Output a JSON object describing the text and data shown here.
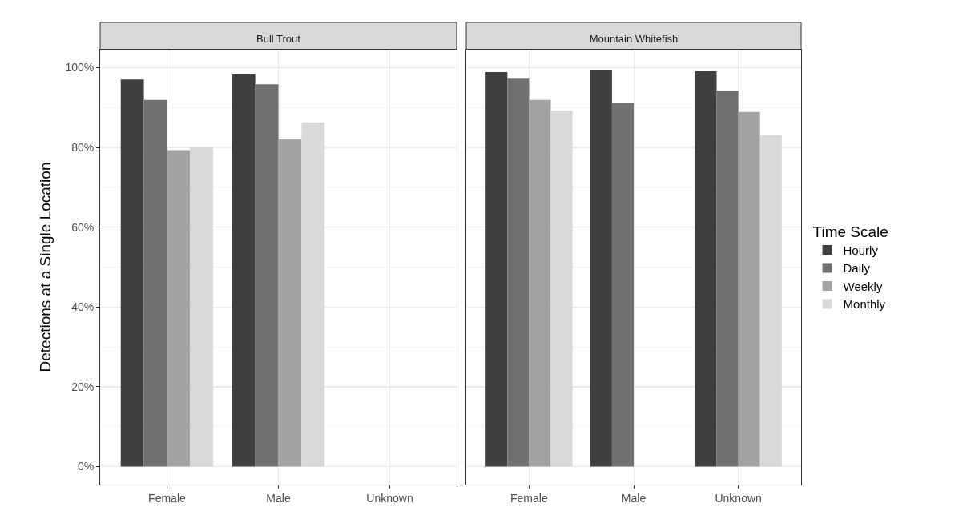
{
  "chart_data": [
    {
      "type": "bar",
      "title": "Bull Trout",
      "ylabel": "Detections at a Single Location",
      "categories": [
        "Female",
        "Male",
        "Unknown"
      ],
      "series": [
        {
          "color": "#3f3f3f",
          "values": [
            97.0,
            98.3,
            null
          ]
        },
        {
          "color": "#717171",
          "values": [
            91.9,
            95.8,
            null
          ]
        },
        {
          "color": "#a3a3a3",
          "values": [
            79.3,
            82.0,
            null
          ]
        },
        {
          "color": "#d9d9d9",
          "values": [
            80.0,
            86.3,
            null
          ]
        }
      ],
      "ylim": [
        -4.5,
        104.5
      ],
      "yticks": [
        {
          "value": 0,
          "label": "0%"
        },
        {
          "value": 20,
          "label": "20%"
        },
        {
          "value": 40,
          "label": "40%"
        },
        {
          "value": 60,
          "label": "60%"
        },
        {
          "value": 80,
          "label": "80%"
        },
        {
          "value": 100,
          "label": "100%"
        }
      ],
      "grid": true,
      "legend": false
    },
    {
      "type": "bar",
      "title": "Mountain Whitefish",
      "legend_title": "Time Scale",
      "categories": [
        "Female",
        "Male",
        "Unknown"
      ],
      "series": [
        {
          "name": "Hourly",
          "color": "#3f3f3f",
          "values": [
            98.9,
            99.3,
            99.1
          ]
        },
        {
          "name": "Daily",
          "color": "#717171",
          "values": [
            97.2,
            91.2,
            94.2
          ]
        },
        {
          "name": "Weekly",
          "color": "#a3a3a3",
          "values": [
            91.9,
            null,
            88.9
          ]
        },
        {
          "name": "Monthly",
          "color": "#d9d9d9",
          "values": [
            89.2,
            null,
            83.1
          ]
        }
      ],
      "ylim": [
        -4.5,
        104.5
      ],
      "yticks": [
        {
          "value": 0,
          "label": null
        },
        {
          "value": 20,
          "label": null
        },
        {
          "value": 40,
          "label": null
        },
        {
          "value": 60,
          "label": null
        },
        {
          "value": 80,
          "label": null
        },
        {
          "value": 100,
          "label": null
        }
      ],
      "grid": true,
      "legend": "right",
      "tick_labels": "x"
    }
  ]
}
